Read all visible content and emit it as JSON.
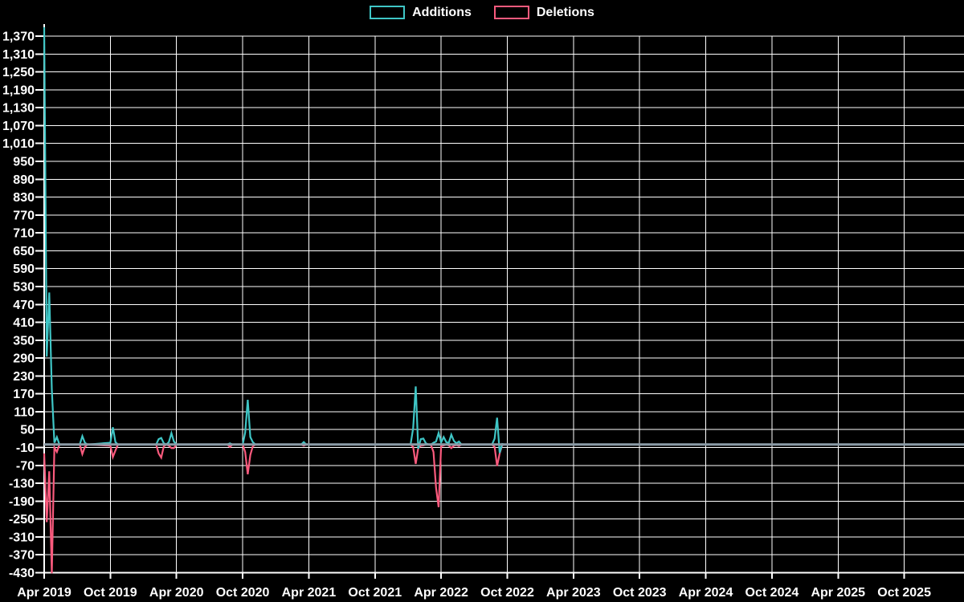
{
  "legend": {
    "items": [
      {
        "label": "Additions",
        "color": "#3fc6c6"
      },
      {
        "label": "Deletions",
        "color": "#fa5a7d"
      }
    ]
  },
  "chart_data": {
    "type": "line",
    "title": "",
    "xlabel": "",
    "ylabel": "",
    "background_color": "#000000",
    "grid": true,
    "grid_color": "#ffffff",
    "axis_color": "#ffffff",
    "label_color": "#ffffff",
    "baseline_band_color": "#8a9aa6",
    "legend_position": "top-center",
    "x_axis": {
      "tick_labels": [
        "Apr 2019",
        "Oct 2019",
        "Apr 2020",
        "Oct 2020",
        "Apr 2021",
        "Oct 2021",
        "Apr 2022",
        "Oct 2022",
        "Apr 2023",
        "Oct 2023",
        "Apr 2024",
        "Oct 2024",
        "Apr 2025",
        "Oct 2025"
      ],
      "tick_interval_weeks": 26,
      "total_weeks_shown": 361
    },
    "y_axis": {
      "min": -430,
      "max": 1370,
      "step": 60,
      "tick_labels": [
        "1,370",
        "1,310",
        "1,250",
        "1,190",
        "1,130",
        "1,070",
        "1,010",
        "950",
        "890",
        "830",
        "770",
        "710",
        "650",
        "590",
        "530",
        "470",
        "410",
        "350",
        "290",
        "230",
        "170",
        "110",
        "50",
        "-10",
        "-70",
        "-130",
        "-190",
        "-250",
        "-310",
        "-370",
        "-430"
      ]
    },
    "series": [
      {
        "name": "Additions",
        "color": "#3fc6c6",
        "points_format": "[weeks_since_Apr_2019, value]",
        "points": [
          [
            0,
            1400
          ],
          [
            1,
            295
          ],
          [
            2,
            510
          ],
          [
            3,
            185
          ],
          [
            4,
            6
          ],
          [
            5,
            25
          ],
          [
            6,
            0
          ],
          [
            14,
            0
          ],
          [
            15,
            28
          ],
          [
            16,
            6
          ],
          [
            17,
            0
          ],
          [
            26,
            6
          ],
          [
            27,
            58
          ],
          [
            28,
            8
          ],
          [
            29,
            0
          ],
          [
            44,
            0
          ],
          [
            45,
            18
          ],
          [
            46,
            22
          ],
          [
            47,
            4
          ],
          [
            48,
            0
          ],
          [
            49,
            8
          ],
          [
            50,
            38
          ],
          [
            51,
            10
          ],
          [
            52,
            0
          ],
          [
            72,
            0
          ],
          [
            73,
            4
          ],
          [
            74,
            0
          ],
          [
            78,
            0
          ],
          [
            79,
            40
          ],
          [
            80,
            150
          ],
          [
            81,
            25
          ],
          [
            82,
            8
          ],
          [
            83,
            0
          ],
          [
            101,
            0
          ],
          [
            102,
            8
          ],
          [
            103,
            0
          ],
          [
            144,
            0
          ],
          [
            145,
            55
          ],
          [
            146,
            195
          ],
          [
            147,
            -14
          ],
          [
            148,
            18
          ],
          [
            149,
            20
          ],
          [
            150,
            4
          ],
          [
            151,
            0
          ],
          [
            152,
            0
          ],
          [
            153,
            6
          ],
          [
            154,
            10
          ],
          [
            155,
            39
          ],
          [
            156,
            7
          ],
          [
            157,
            25
          ],
          [
            158,
            8
          ],
          [
            159,
            5
          ],
          [
            160,
            33
          ],
          [
            161,
            12
          ],
          [
            162,
            4
          ],
          [
            163,
            10
          ],
          [
            164,
            0
          ],
          [
            176,
            0
          ],
          [
            177,
            20
          ],
          [
            178,
            90
          ],
          [
            179,
            -28
          ],
          [
            180,
            2
          ],
          [
            181,
            0
          ],
          [
            361,
            0
          ]
        ]
      },
      {
        "name": "Deletions",
        "color": "#fa5a7d",
        "points_format": "[weeks_since_Apr_2019, value]",
        "points": [
          [
            0,
            -30
          ],
          [
            1,
            -260
          ],
          [
            2,
            -90
          ],
          [
            3,
            -432
          ],
          [
            4,
            -10
          ],
          [
            5,
            -25
          ],
          [
            6,
            0
          ],
          [
            14,
            0
          ],
          [
            15,
            -32
          ],
          [
            16,
            -8
          ],
          [
            17,
            0
          ],
          [
            26,
            -4
          ],
          [
            27,
            -42
          ],
          [
            28,
            -20
          ],
          [
            29,
            0
          ],
          [
            44,
            0
          ],
          [
            45,
            -30
          ],
          [
            46,
            -44
          ],
          [
            47,
            -6
          ],
          [
            48,
            0
          ],
          [
            49,
            -4
          ],
          [
            50,
            -12
          ],
          [
            51,
            -12
          ],
          [
            52,
            0
          ],
          [
            72,
            0
          ],
          [
            73,
            -8
          ],
          [
            74,
            0
          ],
          [
            78,
            0
          ],
          [
            79,
            -25
          ],
          [
            80,
            -100
          ],
          [
            81,
            -35
          ],
          [
            82,
            -6
          ],
          [
            83,
            0
          ],
          [
            101,
            0
          ],
          [
            102,
            -4
          ],
          [
            103,
            0
          ],
          [
            144,
            0
          ],
          [
            145,
            -8
          ],
          [
            146,
            -65
          ],
          [
            147,
            -12
          ],
          [
            148,
            -4
          ],
          [
            149,
            -3
          ],
          [
            150,
            0
          ],
          [
            151,
            0
          ],
          [
            152,
            -2
          ],
          [
            153,
            -25
          ],
          [
            154,
            -145
          ],
          [
            155,
            -210
          ],
          [
            156,
            -6
          ],
          [
            157,
            -3
          ],
          [
            158,
            0
          ],
          [
            159,
            -3
          ],
          [
            160,
            -12
          ],
          [
            161,
            -4
          ],
          [
            162,
            -2
          ],
          [
            163,
            -5
          ],
          [
            164,
            0
          ],
          [
            176,
            0
          ],
          [
            177,
            -8
          ],
          [
            178,
            -72
          ],
          [
            179,
            -30
          ],
          [
            180,
            -2
          ],
          [
            181,
            0
          ],
          [
            361,
            0
          ]
        ]
      }
    ]
  }
}
